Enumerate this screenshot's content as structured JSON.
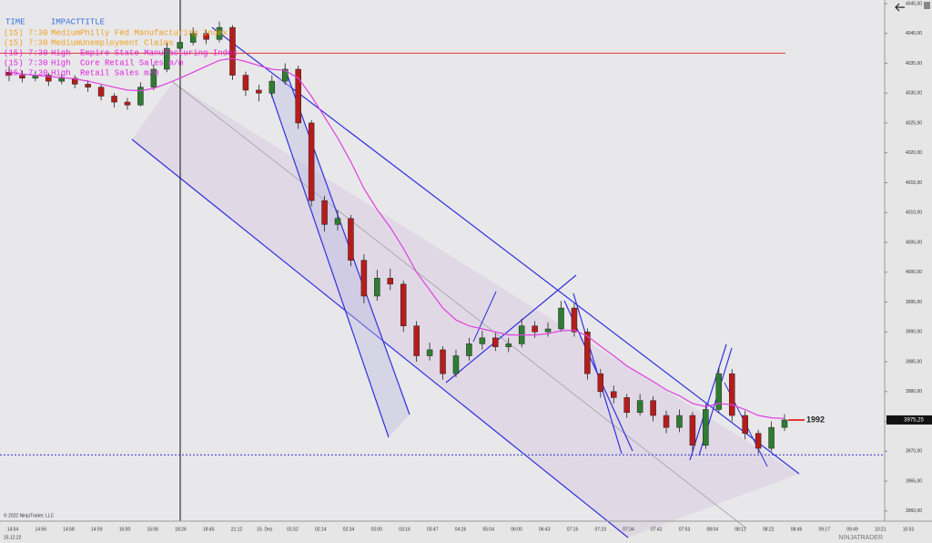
{
  "chart_data": {
    "type": "candlestick",
    "ylim": [
      3958.3,
      4045.6
    ],
    "yticks": [
      {
        "value": 3960,
        "label": "3960,00"
      },
      {
        "value": 3965,
        "label": "3965,00"
      },
      {
        "value": 3970,
        "label": "3970,00"
      },
      {
        "value": 3975,
        "label": "3975,00"
      },
      {
        "value": 3980,
        "label": "3980,00"
      },
      {
        "value": 3985,
        "label": "3985,00"
      },
      {
        "value": 3990,
        "label": "3990,00"
      },
      {
        "value": 3995,
        "label": "3995,00"
      },
      {
        "value": 4000,
        "label": "4000,00"
      },
      {
        "value": 4005,
        "label": "4005,00"
      },
      {
        "value": 4010,
        "label": "4010,00"
      },
      {
        "value": 4015,
        "label": "4015,00"
      },
      {
        "value": 4020,
        "label": "4020,00"
      },
      {
        "value": 4025,
        "label": "4025,00"
      },
      {
        "value": 4030,
        "label": "4030,00"
      },
      {
        "value": 4035,
        "label": "4035,00"
      },
      {
        "value": 4040,
        "label": "4040,00"
      },
      {
        "value": 4045,
        "label": "4045,00"
      }
    ],
    "x_labels": [
      "14:54",
      "14:56",
      "14:58",
      "14:59",
      "15:00",
      "15:06",
      "18:26",
      "18:45",
      "21:12",
      "15. Dez",
      "01:52",
      "02:14",
      "02:34",
      "03:00",
      "03:16",
      "03:47",
      "04:26",
      "05:04",
      "06:00",
      "06:43",
      "07:15",
      "07:23",
      "07:34",
      "07:42",
      "07:53",
      "08:04",
      "08:12",
      "08:22",
      "08:45",
      "09:17",
      "09:49",
      "10:21",
      "10:53"
    ],
    "up_color": "#2e7d32",
    "down_color": "#b71c1c",
    "ma_color": "#e040e0",
    "candles": [
      [
        4033.5,
        4034.5,
        4032,
        4033
      ],
      [
        4033,
        4033.8,
        4031.8,
        4032.5
      ],
      [
        4032.5,
        4033.6,
        4032,
        4033
      ],
      [
        4033,
        4033.4,
        4031.2,
        4032
      ],
      [
        4032,
        4033.2,
        4031.5,
        4032.5
      ],
      [
        4032.5,
        4033,
        4030.8,
        4031.5
      ],
      [
        4031.5,
        4032.2,
        4030.2,
        4031
      ],
      [
        4031,
        4031.5,
        4028.8,
        4029.5
      ],
      [
        4029.5,
        4030,
        4027.6,
        4028.5
      ],
      [
        4028.5,
        4029.2,
        4027.2,
        4028
      ],
      [
        4028,
        4031.8,
        4027.8,
        4031
      ],
      [
        4031,
        4034.8,
        4030.5,
        4034
      ],
      [
        4034,
        4038.4,
        4033.5,
        4037.5
      ],
      [
        4037.5,
        4039.5,
        4036.8,
        4038.5
      ],
      [
        4038.5,
        4041,
        4038,
        4040
      ],
      [
        4040,
        4040.6,
        4038.2,
        4039
      ],
      [
        4039,
        4042,
        4038.5,
        4041
      ],
      [
        4041,
        4041.4,
        4032.2,
        4033
      ],
      [
        4033,
        4033.6,
        4029.5,
        4030.5
      ],
      [
        4030.5,
        4031.4,
        4028.6,
        4030
      ],
      [
        4030,
        4033,
        4029.2,
        4032
      ],
      [
        4032,
        4035,
        4031.4,
        4034
      ],
      [
        4034,
        4034.6,
        4024,
        4025
      ],
      [
        4025,
        4025.5,
        4011,
        4012
      ],
      [
        4012,
        4012.8,
        4006.8,
        4008
      ],
      [
        4008,
        4010.4,
        4007,
        4009
      ],
      [
        4009,
        4009.6,
        4001,
        4002
      ],
      [
        4002,
        4003,
        3994.8,
        3996
      ],
      [
        3996,
        4000.4,
        3995.2,
        3999
      ],
      [
        3999,
        4000.6,
        3997,
        3998
      ],
      [
        3998,
        3998.6,
        3990,
        3991
      ],
      [
        3991,
        3991.8,
        3985,
        3986
      ],
      [
        3986,
        3988.2,
        3985.2,
        3987
      ],
      [
        3987,
        3987.6,
        3982,
        3983
      ],
      [
        3983,
        3987,
        3982.4,
        3986
      ],
      [
        3986,
        3989,
        3985.2,
        3988
      ],
      [
        3988,
        3990.2,
        3987,
        3989
      ],
      [
        3989,
        3989.8,
        3986.8,
        3987.5
      ],
      [
        3987.5,
        3989,
        3986.6,
        3988
      ],
      [
        3988,
        3992.2,
        3987.4,
        3991
      ],
      [
        3991,
        3991.8,
        3989,
        3990
      ],
      [
        3990,
        3991.6,
        3989.2,
        3990.5
      ],
      [
        3990.5,
        3995.2,
        3990,
        3994
      ],
      [
        3994,
        3994.8,
        3989.2,
        3990
      ],
      [
        3990,
        3990.6,
        3982,
        3983
      ],
      [
        3983,
        3983.8,
        3979,
        3980
      ],
      [
        3980,
        3981,
        3978,
        3979
      ],
      [
        3979,
        3979.6,
        3975.6,
        3976.5
      ],
      [
        3976.5,
        3979.6,
        3976,
        3978.5
      ],
      [
        3978.5,
        3979.2,
        3975,
        3976
      ],
      [
        3976,
        3976.8,
        3973,
        3974
      ],
      [
        3974,
        3977,
        3973.2,
        3976
      ],
      [
        3976,
        3976.6,
        3970,
        3971
      ],
      [
        3971,
        3978,
        3970.4,
        3977
      ],
      [
        3977,
        3984,
        3976.4,
        3983
      ],
      [
        3983,
        3983.8,
        3975,
        3976
      ],
      [
        3976,
        3976.8,
        3972,
        3973
      ],
      [
        3973,
        3973.6,
        3969.6,
        3970.5
      ],
      [
        3970.5,
        3975,
        3970,
        3974
      ],
      [
        3974,
        3976.2,
        3973.4,
        3975.25
      ]
    ],
    "ma": [
      4033.5,
      4033.2,
      4033,
      4032.8,
      4032.6,
      4032.4,
      4032,
      4031.5,
      4031,
      4030.5,
      4030.4,
      4030.8,
      4031.6,
      4032.5,
      4033.5,
      4034.5,
      4035.5,
      4035.8,
      4035.3,
      4034.6,
      4034,
      4033.8,
      4032.5,
      4029.5,
      4026,
      4022.5,
      4018.5,
      4014,
      4010.5,
      4007.5,
      4004,
      4000,
      3997,
      3994,
      3992,
      3991,
      3990.5,
      3990,
      3989.5,
      3989.5,
      3989.5,
      3989.7,
      3990.2,
      3990.3,
      3989.3,
      3987.6,
      3986,
      3984.3,
      3983,
      3981.7,
      3980.3,
      3979.3,
      3978,
      3977.5,
      3978,
      3977.8,
      3977,
      3976,
      3975.6,
      3975.5
    ],
    "levels": [
      {
        "value": 4036.7,
        "color": "#e53935",
        "dashed": false
      },
      {
        "value": 3969.4,
        "color": "#3030d0",
        "dashed": true
      }
    ],
    "last_price": {
      "value": 3975.25,
      "label": "3975,25"
    },
    "marker_label": "1992",
    "news": {
      "header": [
        "TIME",
        "IMPACT",
        "TITLE"
      ],
      "rows": [
        {
          "time": "(15) 7:30",
          "impact": "Medium",
          "title": "Philly Fed Manufacturing Index",
          "color": "#f0a020"
        },
        {
          "time": "(15) 7:30",
          "impact": "Medium",
          "title": "Unemployment Claims",
          "color": "#f0a020"
        },
        {
          "time": "(15) 7:30",
          "impact": "High",
          "title": "Empire State Manufacturing Index",
          "color": "#e020e0"
        },
        {
          "time": "(15) 7:30",
          "impact": "High",
          "title": "Core Retail Sales m/m",
          "color": "#e020e0"
        },
        {
          "time": "(15) 7:30",
          "impact": "High",
          "title": "Retail Sales m/m",
          "color": "#e020e0"
        }
      ]
    },
    "copyright": "© 2022 NinjaTrader, LLC",
    "date_label": "15.12.22",
    "logo_text": "NINJATRADER"
  }
}
